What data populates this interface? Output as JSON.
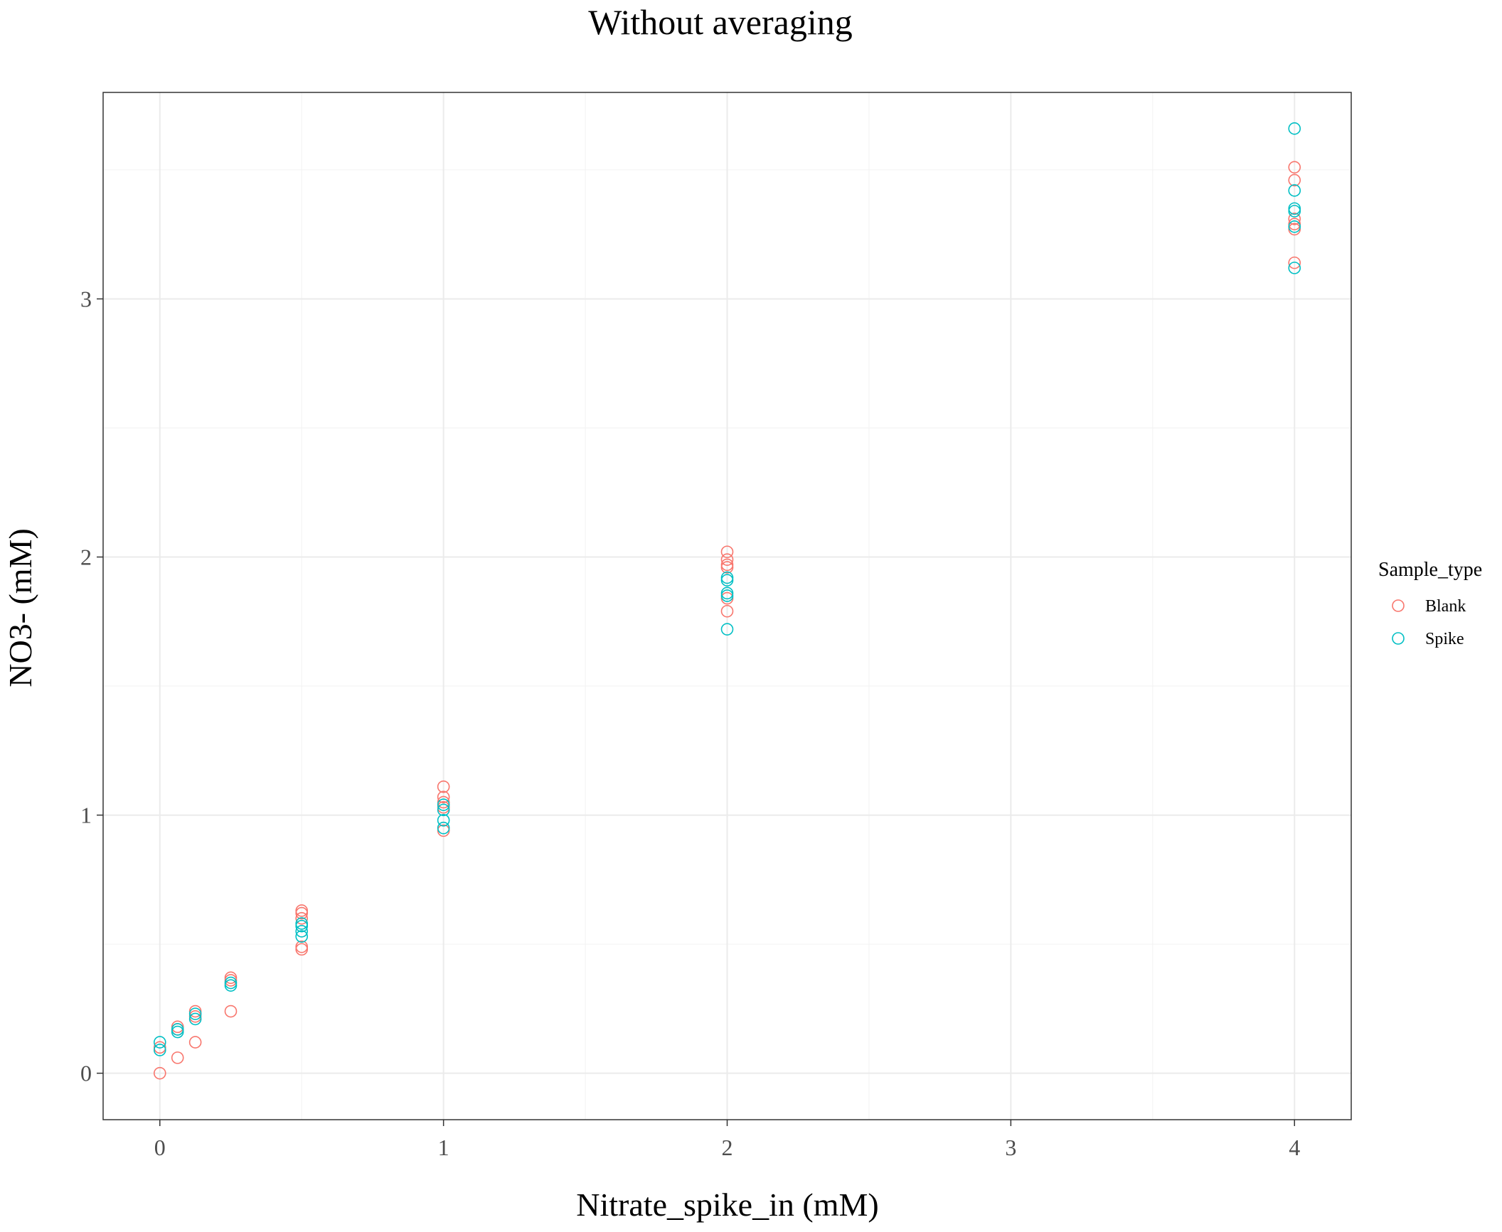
{
  "chart_data": {
    "type": "scatter",
    "title": "Without averaging",
    "xlabel": "Nitrate_spike_in (mM)",
    "ylabel": "NO3- (mM)",
    "xlim": [
      -0.2,
      4.2
    ],
    "ylim": [
      -0.18,
      3.8
    ],
    "x_ticks": [
      0,
      1,
      2,
      3,
      4
    ],
    "y_ticks": [
      0,
      1,
      2,
      3
    ],
    "x_tick_labels": [
      "0",
      "1",
      "2",
      "3",
      "4"
    ],
    "y_tick_labels": [
      "0",
      "1",
      "2",
      "3"
    ],
    "grid": true,
    "legend_position": "right",
    "legend_title": "Sample_type",
    "series": [
      {
        "name": "Blank",
        "color": "#F8766D",
        "points": [
          [
            0,
            0.0
          ],
          [
            0,
            0.1
          ],
          [
            0.0625,
            0.06
          ],
          [
            0.0625,
            0.17
          ],
          [
            0.0625,
            0.18
          ],
          [
            0.125,
            0.12
          ],
          [
            0.125,
            0.24
          ],
          [
            0.125,
            0.22
          ],
          [
            0.25,
            0.24
          ],
          [
            0.25,
            0.36
          ],
          [
            0.25,
            0.37
          ],
          [
            0.5,
            0.48
          ],
          [
            0.5,
            0.49
          ],
          [
            0.5,
            0.6
          ],
          [
            0.5,
            0.62
          ],
          [
            0.5,
            0.63
          ],
          [
            1,
            0.94
          ],
          [
            1,
            1.03
          ],
          [
            1,
            1.05
          ],
          [
            1,
            1.07
          ],
          [
            1,
            1.11
          ],
          [
            2,
            1.79
          ],
          [
            2,
            1.84
          ],
          [
            2,
            1.96
          ],
          [
            2,
            1.97
          ],
          [
            2,
            1.99
          ],
          [
            2,
            2.02
          ],
          [
            4,
            3.14
          ],
          [
            4,
            3.27
          ],
          [
            4,
            3.29
          ],
          [
            4,
            3.31
          ],
          [
            4,
            3.46
          ],
          [
            4,
            3.51
          ]
        ]
      },
      {
        "name": "Spike",
        "color": "#00BFC4",
        "points": [
          [
            0,
            0.09
          ],
          [
            0,
            0.12
          ],
          [
            0.0625,
            0.16
          ],
          [
            0.0625,
            0.17
          ],
          [
            0.125,
            0.21
          ],
          [
            0.125,
            0.23
          ],
          [
            0.25,
            0.34
          ],
          [
            0.25,
            0.35
          ],
          [
            0.5,
            0.53
          ],
          [
            0.5,
            0.55
          ],
          [
            0.5,
            0.57
          ],
          [
            0.5,
            0.58
          ],
          [
            1,
            0.95
          ],
          [
            1,
            0.98
          ],
          [
            1,
            1.02
          ],
          [
            1,
            1.04
          ],
          [
            2,
            1.72
          ],
          [
            2,
            1.85
          ],
          [
            2,
            1.86
          ],
          [
            2,
            1.91
          ],
          [
            2,
            1.92
          ],
          [
            4,
            3.12
          ],
          [
            4,
            3.28
          ],
          [
            4,
            3.34
          ],
          [
            4,
            3.35
          ],
          [
            4,
            3.42
          ],
          [
            4,
            3.66
          ]
        ]
      }
    ]
  }
}
